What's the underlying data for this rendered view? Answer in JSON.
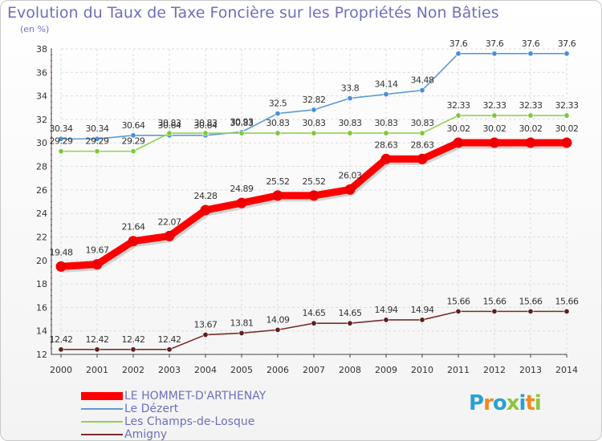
{
  "title": "Evolution du Taux de Taxe Foncière sur les Propriétés Non Bâties",
  "subtitle": "(en %)",
  "logo_text": "Proxiti",
  "chart_data": {
    "type": "line",
    "title": "Evolution du Taux de Taxe Foncière sur les Propriétés Non Bâties",
    "ylabel": "(en %)",
    "xlabel": "",
    "ylim": [
      12,
      38
    ],
    "yticks": [
      12,
      14,
      16,
      18,
      20,
      22,
      24,
      26,
      28,
      30,
      32,
      34,
      36,
      38
    ],
    "grid": true,
    "legend_position": "bottom-left",
    "x": [
      "2000",
      "2001",
      "2002",
      "2003",
      "2004",
      "2005",
      "2006",
      "2007",
      "2008",
      "2009",
      "2010",
      "2011",
      "2012",
      "2013",
      "2014"
    ],
    "series": [
      {
        "name": "Le Dézert",
        "color": "#5b9bd5",
        "marker_color": "#4a8ed6",
        "values": [
          30.34,
          30.34,
          30.64,
          30.64,
          30.64,
          30.93,
          32.5,
          32.82,
          33.8,
          34.14,
          34.48,
          37.6,
          37.6,
          37.6,
          37.6
        ],
        "labels": [
          "30.34",
          "30.34",
          "30.64",
          "30.64",
          "30.64",
          "30.93",
          "32.5",
          "32.82",
          "33.8",
          "34.14",
          "34.48",
          "37.6",
          "37.6",
          "37.6",
          "37.6"
        ]
      },
      {
        "name": "Les Champs-de-Losque",
        "color": "#8fd14f",
        "marker_color": "#7ec83a",
        "values": [
          29.29,
          29.29,
          29.29,
          30.83,
          30.83,
          30.83,
          30.83,
          30.83,
          30.83,
          30.83,
          30.83,
          32.33,
          32.33,
          32.33,
          32.33
        ],
        "labels": [
          "29.29",
          "29.29",
          "29.29",
          "30.83",
          "30.83",
          "30.83",
          "30.83",
          "30.83",
          "30.83",
          "30.83",
          "30.83",
          "32.33",
          "32.33",
          "32.33",
          "32.33"
        ]
      },
      {
        "name": "Amigny",
        "color": "#7a2c2c",
        "marker_color": "#5e1f1f",
        "values": [
          12.42,
          12.42,
          12.42,
          12.42,
          13.67,
          13.81,
          14.09,
          14.65,
          14.65,
          14.94,
          14.94,
          15.66,
          15.66,
          15.66,
          15.66
        ],
        "labels": [
          "12.42",
          "12.42",
          "12.42",
          "12.42",
          "13.67",
          "13.81",
          "14.09",
          "14.65",
          "14.65",
          "14.94",
          "14.94",
          "15.66",
          "15.66",
          "15.66",
          "15.66"
        ]
      },
      {
        "name": "LE HOMMET-D'ARTHENAY",
        "color": "#ff0000",
        "marker_color": "#ee0000",
        "values": [
          19.48,
          19.67,
          21.64,
          22.07,
          24.28,
          24.89,
          25.52,
          25.52,
          26.03,
          28.63,
          28.63,
          30.02,
          30.02,
          30.02,
          30.02
        ],
        "labels": [
          "19.48",
          "19.67",
          "21.64",
          "22.07",
          "24.28",
          "24.89",
          "25.52",
          "25.52",
          "26.03",
          "28.63",
          "28.63",
          "30.02",
          "30.02",
          "30.02",
          "30.02"
        ]
      }
    ]
  },
  "legend": [
    {
      "label": "LE HOMMET-D'ARTHENAY",
      "color": "#ff0000",
      "thick": true
    },
    {
      "label": "Le Dézert",
      "color": "#5b9bd5",
      "thick": false
    },
    {
      "label": "Les Champs-de-Losque",
      "color": "#8fd14f",
      "thick": false
    },
    {
      "label": "Amigny",
      "color": "#7a2c2c",
      "thick": false
    }
  ]
}
